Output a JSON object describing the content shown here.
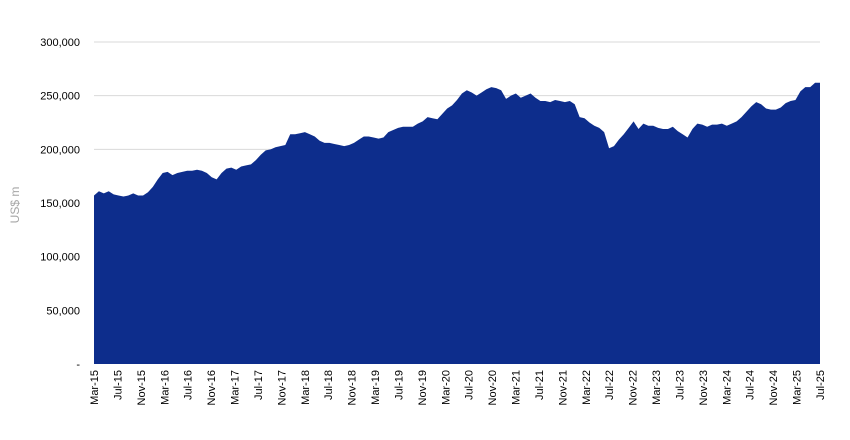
{
  "chart_data": {
    "type": "area",
    "title": "",
    "xlabel": "",
    "ylabel": "US$ m",
    "ylim": [
      0,
      300000
    ],
    "grid": true,
    "y_ticks": [
      {
        "value": 0,
        "label": "-"
      },
      {
        "value": 50000,
        "label": "50,000"
      },
      {
        "value": 100000,
        "label": "100,000"
      },
      {
        "value": 150000,
        "label": "150,000"
      },
      {
        "value": 200000,
        "label": "200,000"
      },
      {
        "value": 250000,
        "label": "250,000"
      },
      {
        "value": 300000,
        "label": "300,000"
      }
    ],
    "x_tick_labels": [
      "Mar-15",
      "Jul-15",
      "Nov-15",
      "Mar-16",
      "Jul-16",
      "Nov-16",
      "Mar-17",
      "Jul-17",
      "Nov-17",
      "Mar-18",
      "Jul-18",
      "Nov-18",
      "Mar-19",
      "Jul-19",
      "Nov-19",
      "Mar-20",
      "Jul-20",
      "Nov-20",
      "Mar-21",
      "Jul-21",
      "Nov-21",
      "Mar-22",
      "Jul-22",
      "Nov-22",
      "Mar-23",
      "Jul-23",
      "Nov-23",
      "Mar-24",
      "Jul-24",
      "Nov-24",
      "Mar-25",
      "Jul-25"
    ],
    "fill_color": "#0d2d8c",
    "series": [
      {
        "values": [
          157000,
          161000,
          159000,
          161000,
          158000,
          157000,
          156000,
          157000,
          159000,
          157000,
          157000,
          160000,
          165000,
          172000,
          178000,
          179000,
          176000,
          178000,
          179000,
          180000,
          180000,
          181000,
          180000,
          178000,
          174000,
          172000,
          178000,
          182000,
          183000,
          181000,
          184000,
          185000,
          186000,
          190000,
          195000,
          199000,
          200000,
          202000,
          203000,
          204000,
          214000,
          214000,
          215000,
          216000,
          214000,
          212000,
          208000,
          206000,
          206000,
          205000,
          204000,
          203000,
          204000,
          206000,
          209000,
          212000,
          212000,
          211000,
          210000,
          211000,
          216000,
          218000,
          220000,
          221000,
          221000,
          221000,
          224000,
          226000,
          230000,
          229000,
          228000,
          233000,
          238000,
          241000,
          246000,
          252000,
          255000,
          253000,
          250000,
          253000,
          256000,
          258000,
          257000,
          255000,
          247000,
          250000,
          252000,
          248000,
          250000,
          252000,
          248000,
          245000,
          245000,
          244000,
          246000,
          245000,
          244000,
          245000,
          242000,
          230000,
          229000,
          225000,
          222000,
          220000,
          216000,
          201000,
          203000,
          209000,
          214000,
          220000,
          226000,
          219000,
          224000,
          222000,
          222000,
          220000,
          219000,
          219000,
          221000,
          217000,
          214000,
          211000,
          219000,
          224000,
          223000,
          221000,
          223000,
          223000,
          224000,
          222000,
          224000,
          226000,
          230000,
          235000,
          240000,
          244000,
          242000,
          238000,
          237000,
          237000,
          239000,
          243000,
          245000,
          246000,
          254000,
          258000,
          258000,
          262000,
          262000
        ]
      }
    ]
  }
}
